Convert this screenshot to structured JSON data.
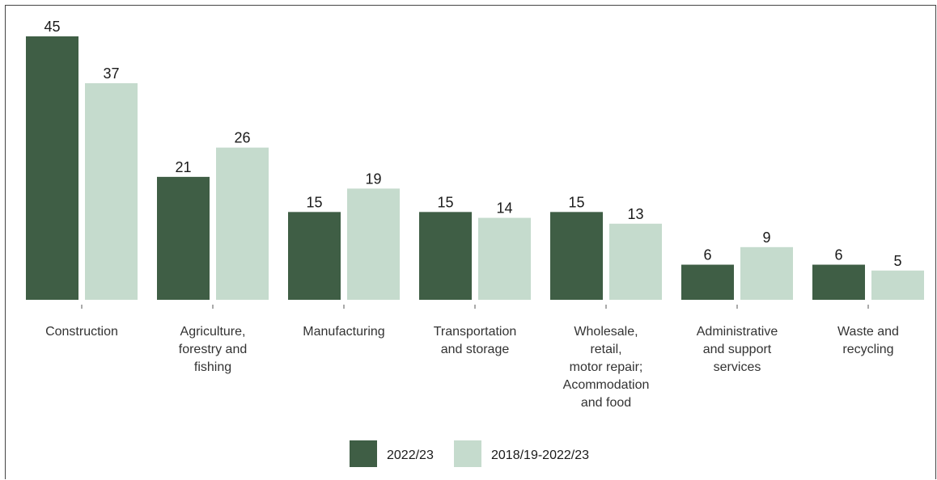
{
  "chart_data": {
    "type": "bar",
    "categories": [
      [
        "Construction"
      ],
      [
        "Agriculture,",
        "forestry and",
        "fishing"
      ],
      [
        "Manufacturing"
      ],
      [
        "Transportation",
        "and storage"
      ],
      [
        "Wholesale,",
        "retail,",
        "motor repair;",
        "Acommodation",
        "and food"
      ],
      [
        "Administrative",
        "and support",
        "services"
      ],
      [
        "Waste and",
        "recycling"
      ]
    ],
    "series": [
      {
        "name": "2022/23",
        "color": "#3f5e45",
        "values": [
          45,
          21,
          15,
          15,
          15,
          6,
          6
        ]
      },
      {
        "name": "2018/19-2022/23",
        "color": "#c5dbcd",
        "values": [
          37,
          26,
          19,
          14,
          13,
          9,
          5
        ]
      }
    ],
    "title": "",
    "xlabel": "",
    "ylabel": "",
    "ylim": [
      0,
      45
    ],
    "grid": false,
    "legend": "bottom"
  }
}
